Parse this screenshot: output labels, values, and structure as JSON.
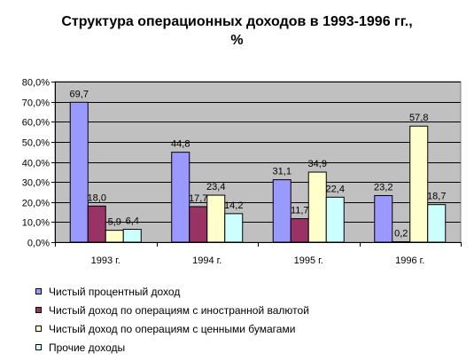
{
  "chart_data": {
    "type": "bar",
    "title": "Структура операционных доходов в 1993-1996 гг.,",
    "title_line2": "%",
    "categories": [
      "1993 г.",
      "1994 г.",
      "1995 г.",
      "1996 г."
    ],
    "series": [
      {
        "name": "Чистый процентный доход",
        "color": "#9999ff",
        "values": [
          69.7,
          44.8,
          31.1,
          23.2
        ],
        "labels": [
          "69,7",
          "44,8",
          "31,1",
          "23,2"
        ]
      },
      {
        "name": "Чистый доход по операциям с иностранной валютой",
        "color": "#993366",
        "values": [
          18.0,
          17.7,
          11.7,
          0.2
        ],
        "labels": [
          "18,0",
          "17,7",
          "11,7",
          "0,2"
        ]
      },
      {
        "name": "Чистый доход по операциям с ценными бумагами",
        "color": "#ffffcc",
        "values": [
          5.9,
          23.4,
          34.9,
          57.8
        ],
        "labels": [
          "5,9",
          "23,4",
          "34,9",
          "57,8"
        ]
      },
      {
        "name": "Прочие доходы",
        "color": "#ccffff",
        "values": [
          6.4,
          14.2,
          22.4,
          18.7
        ],
        "labels": [
          "6,4",
          "14,2",
          "22,4",
          "18,7"
        ]
      }
    ],
    "ylim": [
      0,
      80
    ],
    "yticks": [
      0,
      10,
      20,
      30,
      40,
      50,
      60,
      70,
      80
    ],
    "ytick_labels": [
      "0,0%",
      "10,0%",
      "20,0%",
      "30,0%",
      "40,0%",
      "50,0%",
      "60,0%",
      "70,0%",
      "80,0%"
    ],
    "grid": true,
    "plot_background": "#c0c0c0",
    "legend_position": "bottom-left"
  }
}
